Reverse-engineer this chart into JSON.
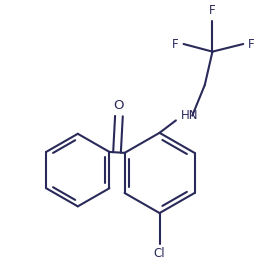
{
  "background_color": "#ffffff",
  "line_color": "#2a2a5a",
  "line_width": 1.5,
  "font_size": 8.5,
  "figsize": [
    2.58,
    2.76
  ],
  "dpi": 100,
  "xlim": [
    0,
    258
  ],
  "ylim": [
    0,
    276
  ]
}
